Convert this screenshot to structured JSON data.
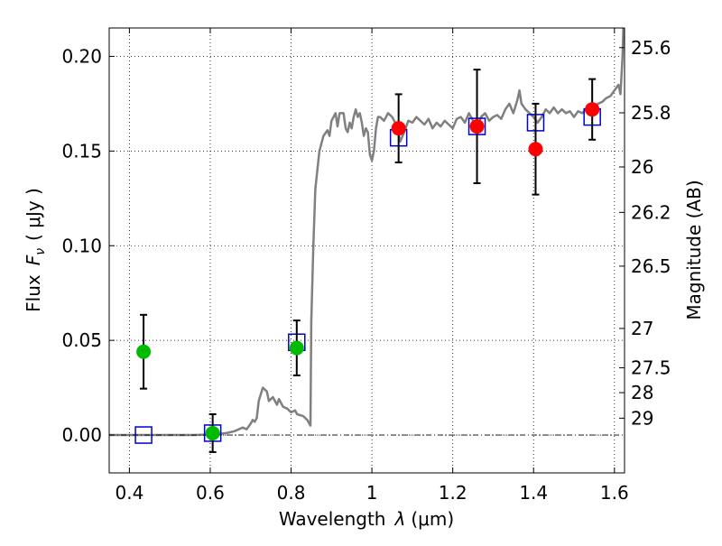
{
  "chart_data": {
    "type": "scatter",
    "xlabel": "Wavelength",
    "xlabel_symbol": "λ",
    "xlabel_unit": "(μm)",
    "ylabel": "Flux",
    "ylabel_symbol": "F",
    "ylabel_subscript": "ν",
    "ylabel_unit": "( μJy )",
    "y2label": "Magnitude (AB)",
    "xlim": [
      0.35,
      1.625
    ],
    "ylim": [
      -0.02,
      0.215
    ],
    "grid": true,
    "x_ticks": [
      {
        "value": 0.4,
        "label": "0.4"
      },
      {
        "value": 0.6,
        "label": "0.6"
      },
      {
        "value": 0.8,
        "label": "0.8"
      },
      {
        "value": 1.0,
        "label": "1"
      },
      {
        "value": 1.2,
        "label": "1.2"
      },
      {
        "value": 1.4,
        "label": "1.4"
      },
      {
        "value": 1.6,
        "label": "1.6"
      }
    ],
    "y_ticks": [
      {
        "value": 0.0,
        "label": "0.00"
      },
      {
        "value": 0.05,
        "label": "0.05"
      },
      {
        "value": 0.1,
        "label": "0.10"
      },
      {
        "value": 0.15,
        "label": "0.15"
      },
      {
        "value": 0.2,
        "label": "0.20"
      }
    ],
    "y2_ticks": [
      {
        "flux": 0.2046,
        "label": "25.6"
      },
      {
        "flux": 0.1702,
        "label": "25.8"
      },
      {
        "flux": 0.1416,
        "label": "26"
      },
      {
        "flux": 0.1176,
        "label": "26.2"
      },
      {
        "flux": 0.0892,
        "label": "26.5"
      },
      {
        "flux": 0.0563,
        "label": "27"
      },
      {
        "flux": 0.0355,
        "label": "27.5"
      },
      {
        "flux": 0.0224,
        "label": "28"
      },
      {
        "flux": 0.0089,
        "label": "29"
      }
    ],
    "sed_model": {
      "color": "#808080",
      "points": [
        [
          0.35,
          0.0
        ],
        [
          0.56,
          0.0
        ],
        [
          0.61,
          0.0003
        ],
        [
          0.64,
          0.001
        ],
        [
          0.66,
          0.002
        ],
        [
          0.68,
          0.004
        ],
        [
          0.69,
          0.003
        ],
        [
          0.7,
          0.006
        ],
        [
          0.705,
          0.008
        ],
        [
          0.71,
          0.007
        ],
        [
          0.715,
          0.009
        ],
        [
          0.72,
          0.018
        ],
        [
          0.73,
          0.025
        ],
        [
          0.74,
          0.023
        ],
        [
          0.745,
          0.018
        ],
        [
          0.755,
          0.02
        ],
        [
          0.765,
          0.016
        ],
        [
          0.77,
          0.019
        ],
        [
          0.78,
          0.015
        ],
        [
          0.79,
          0.014
        ],
        [
          0.8,
          0.012
        ],
        [
          0.81,
          0.013
        ],
        [
          0.815,
          0.011
        ],
        [
          0.83,
          0.01
        ],
        [
          0.84,
          0.008
        ],
        [
          0.848,
          0.005
        ],
        [
          0.85,
          0.06
        ],
        [
          0.855,
          0.1
        ],
        [
          0.86,
          0.13
        ],
        [
          0.87,
          0.15
        ],
        [
          0.88,
          0.158
        ],
        [
          0.89,
          0.161
        ],
        [
          0.895,
          0.158
        ],
        [
          0.9,
          0.166
        ],
        [
          0.91,
          0.17
        ],
        [
          0.915,
          0.163
        ],
        [
          0.92,
          0.17
        ],
        [
          0.93,
          0.17
        ],
        [
          0.935,
          0.162
        ],
        [
          0.94,
          0.16
        ],
        [
          0.945,
          0.165
        ],
        [
          0.95,
          0.162
        ],
        [
          0.955,
          0.168
        ],
        [
          0.96,
          0.172
        ],
        [
          0.965,
          0.168
        ],
        [
          0.97,
          0.17
        ],
        [
          0.975,
          0.165
        ],
        [
          0.98,
          0.158
        ],
        [
          0.985,
          0.162
        ],
        [
          0.99,
          0.16
        ],
        [
          0.995,
          0.148
        ],
        [
          1.0,
          0.145
        ],
        [
          1.005,
          0.15
        ],
        [
          1.01,
          0.162
        ],
        [
          1.015,
          0.168
        ],
        [
          1.02,
          0.168
        ],
        [
          1.03,
          0.166
        ],
        [
          1.04,
          0.17
        ],
        [
          1.05,
          0.168
        ],
        [
          1.06,
          0.164
        ],
        [
          1.065,
          0.16
        ],
        [
          1.07,
          0.155
        ],
        [
          1.08,
          0.16
        ],
        [
          1.09,
          0.166
        ],
        [
          1.1,
          0.165
        ],
        [
          1.11,
          0.168
        ],
        [
          1.12,
          0.166
        ],
        [
          1.13,
          0.164
        ],
        [
          1.14,
          0.167
        ],
        [
          1.15,
          0.162
        ],
        [
          1.16,
          0.165
        ],
        [
          1.17,
          0.163
        ],
        [
          1.18,
          0.166
        ],
        [
          1.19,
          0.164
        ],
        [
          1.2,
          0.162
        ],
        [
          1.21,
          0.167
        ],
        [
          1.22,
          0.168
        ],
        [
          1.23,
          0.165
        ],
        [
          1.24,
          0.17
        ],
        [
          1.25,
          0.166
        ],
        [
          1.26,
          0.162
        ],
        [
          1.27,
          0.168
        ],
        [
          1.28,
          0.17
        ],
        [
          1.29,
          0.166
        ],
        [
          1.3,
          0.168
        ],
        [
          1.31,
          0.169
        ],
        [
          1.32,
          0.167
        ],
        [
          1.33,
          0.172
        ],
        [
          1.34,
          0.175
        ],
        [
          1.35,
          0.17
        ],
        [
          1.36,
          0.177
        ],
        [
          1.365,
          0.182
        ],
        [
          1.37,
          0.175
        ],
        [
          1.38,
          0.172
        ],
        [
          1.39,
          0.17
        ],
        [
          1.4,
          0.168
        ],
        [
          1.41,
          0.165
        ],
        [
          1.42,
          0.168
        ],
        [
          1.43,
          0.172
        ],
        [
          1.44,
          0.17
        ],
        [
          1.45,
          0.173
        ],
        [
          1.46,
          0.17
        ],
        [
          1.47,
          0.172
        ],
        [
          1.48,
          0.17
        ],
        [
          1.49,
          0.171
        ],
        [
          1.5,
          0.168
        ],
        [
          1.51,
          0.171
        ],
        [
          1.52,
          0.17
        ],
        [
          1.53,
          0.172
        ],
        [
          1.54,
          0.171
        ],
        [
          1.55,
          0.174
        ],
        [
          1.56,
          0.175
        ],
        [
          1.57,
          0.176
        ],
        [
          1.58,
          0.178
        ],
        [
          1.59,
          0.179
        ],
        [
          1.6,
          0.182
        ],
        [
          1.61,
          0.185
        ],
        [
          1.615,
          0.18
        ],
        [
          1.62,
          0.2
        ],
        [
          1.622,
          0.215
        ]
      ]
    },
    "series": [
      {
        "marker": "circle",
        "color": "#00bb00",
        "points": [
          {
            "x": 0.435,
            "y": 0.044,
            "yerr": 0.0195
          },
          {
            "x": 0.606,
            "y": 0.001,
            "yerr": 0.01
          },
          {
            "x": 0.814,
            "y": 0.046,
            "yerr": 0.0145
          }
        ]
      },
      {
        "marker": "circle",
        "color": "#ff0000",
        "points": [
          {
            "x": 1.066,
            "y": 0.162,
            "yerr": 0.018
          },
          {
            "x": 1.26,
            "y": 0.163,
            "yerr": 0.03
          },
          {
            "x": 1.405,
            "y": 0.151,
            "yerr": 0.024
          },
          {
            "x": 1.545,
            "y": 0.172,
            "yerr": 0.016
          }
        ]
      },
      {
        "marker": "square",
        "color": "#0000cc",
        "points": [
          {
            "x": 0.435,
            "y": 0.0
          },
          {
            "x": 0.606,
            "y": 0.001
          },
          {
            "x": 0.814,
            "y": 0.049
          },
          {
            "x": 1.066,
            "y": 0.157
          },
          {
            "x": 1.26,
            "y": 0.163
          },
          {
            "x": 1.405,
            "y": 0.165
          },
          {
            "x": 1.545,
            "y": 0.168
          }
        ]
      }
    ]
  }
}
